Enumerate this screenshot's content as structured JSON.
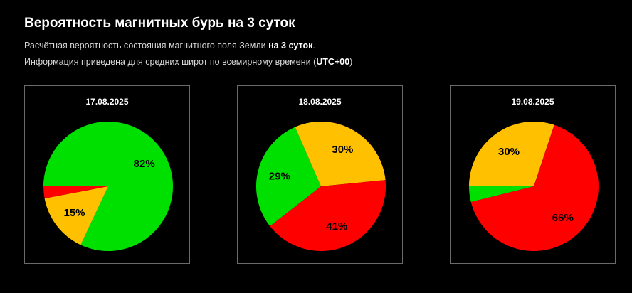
{
  "header": {
    "title": "Вероятность магнитных бурь на 3 суток",
    "line1_prefix": "Расчётная вероятность состояния магнитного поля Земли ",
    "line1_bold": "на 3 суток",
    "line1_suffix": ".",
    "line2_prefix": "Информация приведена для средних широт по всемирному времени (",
    "line2_bold": "UTC+00",
    "line2_suffix": ")"
  },
  "colors": {
    "green": "#00e000",
    "yellow": "#ffc000",
    "red": "#ff0000"
  },
  "chart_data": [
    {
      "type": "pie",
      "title": "17.08.2025",
      "slices": [
        {
          "color": "green",
          "value": 82,
          "label": "82%"
        },
        {
          "color": "yellow",
          "value": 15,
          "label": "15%"
        },
        {
          "color": "red",
          "value": 3,
          "label": ""
        }
      ]
    },
    {
      "type": "pie",
      "title": "18.08.2025",
      "slices": [
        {
          "color": "green",
          "value": 29,
          "label": "29%"
        },
        {
          "color": "yellow",
          "value": 30,
          "label": "30%"
        },
        {
          "color": "red",
          "value": 41,
          "label": "41%"
        }
      ]
    },
    {
      "type": "pie",
      "title": "19.08.2025",
      "slices": [
        {
          "color": "green",
          "value": 4,
          "label": ""
        },
        {
          "color": "yellow",
          "value": 30,
          "label": "30%"
        },
        {
          "color": "red",
          "value": 66,
          "label": "66%"
        }
      ]
    }
  ]
}
